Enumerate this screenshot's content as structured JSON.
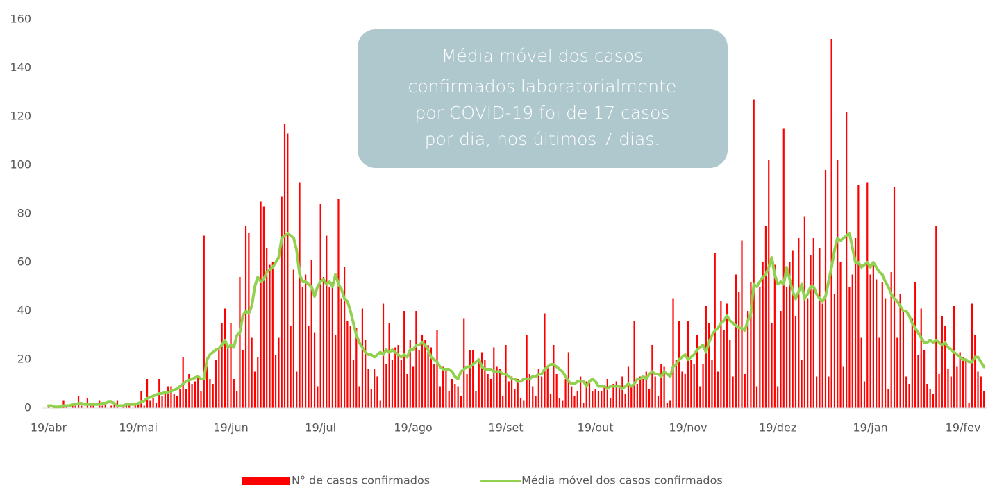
{
  "chart_data": {
    "type": "bar",
    "annotation": [
      "Média móvel dos casos",
      "confirmados laboratorialmente",
      "por COVID-19 foi de 17 casos",
      "por dia, nos últimos 7 dias."
    ],
    "categories": [
      "19/abr",
      null,
      null,
      null,
      null,
      null,
      null,
      null,
      null,
      null,
      null,
      null,
      null,
      null,
      null,
      null,
      null,
      null,
      null,
      null,
      null,
      null,
      null,
      null,
      null,
      null,
      null,
      null,
      null,
      null,
      "19/mai",
      null,
      null,
      null,
      null,
      null,
      null,
      null,
      null,
      null,
      null,
      null,
      null,
      null,
      null,
      null,
      null,
      null,
      null,
      null,
      null,
      null,
      null,
      null,
      null,
      null,
      null,
      null,
      null,
      null,
      null,
      "19/jun",
      null,
      null,
      null,
      null,
      null,
      null,
      null,
      null,
      null,
      null,
      null,
      null,
      null,
      null,
      null,
      null,
      null,
      null,
      null,
      null,
      null,
      null,
      null,
      null,
      null,
      null,
      null,
      null,
      null,
      "19/jul",
      null,
      null,
      null,
      null,
      null,
      null,
      null,
      null,
      null,
      null,
      null,
      null,
      null,
      null,
      null,
      null,
      null,
      null,
      null,
      null,
      null,
      null,
      null,
      null,
      null,
      null,
      null,
      null,
      null,
      null,
      "19/ago",
      null,
      null,
      null,
      null,
      null,
      null,
      null,
      null,
      null,
      null,
      null,
      null,
      null,
      null,
      null,
      null,
      null,
      null,
      null,
      null,
      null,
      null,
      null,
      null,
      null,
      null,
      null,
      null,
      null,
      null,
      "19/set",
      null,
      null,
      null,
      null,
      null,
      null,
      null,
      null,
      null,
      null,
      null,
      null,
      null,
      null,
      null,
      null,
      null,
      null,
      null,
      null,
      null,
      null,
      null,
      null,
      null,
      null,
      null,
      null,
      null,
      "19/out",
      null,
      null,
      null,
      null,
      null,
      null,
      null,
      null,
      null,
      null,
      null,
      null,
      null,
      null,
      null,
      null,
      null,
      null,
      null,
      null,
      null,
      null,
      null,
      null,
      null,
      null,
      null,
      null,
      null,
      null,
      "19/nov",
      null,
      null,
      null,
      null,
      null,
      null,
      null,
      null,
      null,
      null,
      null,
      null,
      null,
      null,
      null,
      null,
      null,
      null,
      null,
      null,
      null,
      null,
      null,
      null,
      null,
      null,
      null,
      null,
      null,
      "19/dez",
      null,
      null,
      null,
      null,
      null,
      null,
      null,
      null,
      null,
      null,
      null,
      null,
      null,
      null,
      null,
      null,
      null,
      null,
      null,
      null,
      null,
      null,
      null,
      null,
      null,
      null,
      null,
      null,
      null,
      null,
      "19/jan",
      null,
      null,
      null,
      null,
      null,
      null,
      null,
      null,
      null,
      null,
      null,
      null,
      null,
      null,
      null,
      null,
      null,
      null,
      null,
      null,
      null,
      null,
      null,
      null,
      null,
      null,
      null,
      null,
      null,
      null,
      "19/fev",
      null,
      null,
      null,
      null,
      null,
      null,
      null
    ],
    "series": [
      {
        "name": "N° de casos confirmados",
        "type": "bar",
        "color": "#ff0000",
        "values": [
          1,
          0,
          0,
          1,
          0,
          3,
          1,
          0,
          1,
          2,
          5,
          1,
          0,
          4,
          2,
          1,
          0,
          3,
          1,
          2,
          0,
          1,
          2,
          3,
          0,
          1,
          2,
          1,
          0,
          2,
          2,
          7,
          1,
          12,
          3,
          4,
          2,
          12,
          5,
          7,
          9,
          9,
          6,
          5,
          8,
          21,
          8,
          14,
          10,
          11,
          13,
          7,
          71,
          17,
          12,
          10,
          20,
          24,
          35,
          41,
          25,
          35,
          12,
          7,
          54,
          24,
          75,
          72,
          29,
          15,
          21,
          85,
          83,
          66,
          59,
          60,
          22,
          29,
          87,
          117,
          113,
          34,
          57,
          15,
          93,
          50,
          55,
          34,
          61,
          31,
          9,
          84,
          54,
          71,
          50,
          52,
          30,
          86,
          45,
          58,
          36,
          34,
          20,
          33,
          9,
          41,
          28,
          16,
          8,
          16,
          13,
          3,
          43,
          18,
          35,
          20,
          25,
          26,
          20,
          40,
          14,
          28,
          17,
          40,
          24,
          30,
          28,
          26,
          25,
          18,
          32,
          9,
          17,
          16,
          7,
          12,
          10,
          9,
          5,
          37,
          14,
          24,
          24,
          7,
          19,
          23,
          20,
          14,
          12,
          25,
          17,
          16,
          5,
          26,
          11,
          13,
          8,
          12,
          4,
          3,
          30,
          14,
          9,
          5,
          16,
          13,
          39,
          17,
          6,
          26,
          14,
          4,
          3,
          12,
          23,
          9,
          5,
          7,
          13,
          2,
          11,
          11,
          7,
          8,
          7,
          7,
          9,
          12,
          4,
          10,
          11,
          9,
          13,
          6,
          17,
          9,
          36,
          10,
          13,
          12,
          15,
          8,
          26,
          13,
          5,
          18,
          17,
          2,
          3,
          45,
          20,
          36,
          15,
          14,
          36,
          20,
          18,
          30,
          9,
          18,
          42,
          35,
          20,
          64,
          15,
          44,
          32,
          43,
          28,
          13,
          55,
          48,
          69,
          14,
          40,
          52,
          127,
          9,
          50,
          60,
          75,
          102,
          35,
          59,
          9,
          40,
          115,
          50,
          60,
          65,
          38,
          70,
          20,
          79,
          45,
          63,
          70,
          13,
          66,
          43,
          98,
          13,
          152,
          47,
          102,
          60,
          17,
          122,
          50,
          55,
          70,
          92,
          29,
          11,
          93,
          55,
          60,
          53,
          29,
          52,
          45,
          8,
          56,
          91,
          29,
          47,
          40,
          13,
          10,
          37,
          52,
          22,
          41,
          24,
          10,
          8,
          6,
          75,
          14,
          38,
          34,
          16,
          13,
          42,
          17,
          23,
          21,
          20,
          2,
          43,
          30,
          15,
          13,
          7
        ]
      },
      {
        "name": "Média móvel dos casos confirmados",
        "type": "line",
        "color": "#92d050",
        "values": [
          1,
          1,
          0.5,
          0.5,
          0.5,
          1,
          1,
          1,
          1.5,
          1.5,
          2,
          2,
          1.5,
          1.5,
          1.5,
          1.5,
          1.5,
          1.5,
          2,
          2,
          2.5,
          2.5,
          2,
          1,
          1,
          1,
          1.5,
          1.5,
          1.5,
          1.5,
          2,
          2.5,
          3,
          4,
          4.5,
          5,
          5.5,
          6,
          6,
          6.5,
          6.5,
          7,
          7.5,
          8,
          9,
          10,
          11,
          11.5,
          12,
          12.5,
          13,
          12,
          12,
          20,
          22,
          23,
          24,
          24.5,
          26,
          28,
          25,
          26,
          25,
          30,
          31,
          38,
          40,
          39,
          42,
          50,
          54,
          52,
          53,
          56,
          57,
          58,
          60,
          62,
          70,
          71,
          72,
          71,
          70,
          65,
          55,
          52,
          52,
          51,
          50,
          46,
          50,
          52,
          53,
          51,
          52,
          50,
          55,
          51,
          49,
          45,
          44,
          40,
          35,
          30,
          27,
          25,
          23,
          22,
          22,
          21,
          22,
          23,
          22,
          24,
          23,
          24,
          23,
          22,
          21,
          22,
          21,
          24,
          24,
          26,
          26,
          27,
          26,
          24,
          21,
          20,
          19,
          17,
          16,
          16,
          16,
          15,
          13,
          12,
          15,
          16,
          17,
          17,
          18,
          19,
          20,
          17,
          16,
          16,
          16,
          15,
          15,
          15,
          14,
          14,
          13,
          12,
          12,
          11,
          11,
          12,
          12,
          12,
          13,
          13,
          14,
          14,
          16,
          17,
          18,
          18,
          17,
          16,
          15,
          13,
          11,
          10,
          10,
          11,
          11,
          11,
          9,
          11,
          12,
          11,
          9,
          9,
          9,
          8,
          9,
          9,
          9,
          9,
          8,
          9,
          10,
          9,
          10,
          12,
          12,
          13,
          12,
          14,
          15,
          14,
          14,
          13,
          15,
          14,
          13,
          17,
          18,
          20,
          21,
          22,
          20,
          21,
          22,
          24,
          25,
          26,
          23,
          27,
          30,
          32,
          33,
          35,
          36,
          38,
          36,
          35,
          34,
          33,
          33,
          32,
          36,
          39,
          51,
          50,
          52,
          54,
          55,
          58,
          62,
          55,
          51,
          52,
          51,
          58,
          53,
          48,
          45,
          48,
          51,
          45,
          47,
          50,
          50,
          47,
          45,
          44,
          46,
          52,
          58,
          65,
          70,
          69,
          70,
          71,
          72,
          66,
          60,
          60,
          58,
          59,
          60,
          58,
          60,
          58,
          56,
          55,
          52,
          50,
          47,
          45,
          44,
          42,
          40,
          40,
          38,
          35,
          33,
          31,
          29,
          27,
          27,
          28,
          27,
          28,
          27,
          26,
          27,
          25,
          24,
          23,
          22,
          21,
          20,
          20,
          19,
          19,
          21,
          21,
          19,
          17
        ]
      }
    ],
    "ylim": [
      0,
      160
    ],
    "yticks": [
      0,
      20,
      40,
      60,
      80,
      100,
      120,
      140,
      160
    ],
    "grid": false,
    "legend": "bottom"
  }
}
